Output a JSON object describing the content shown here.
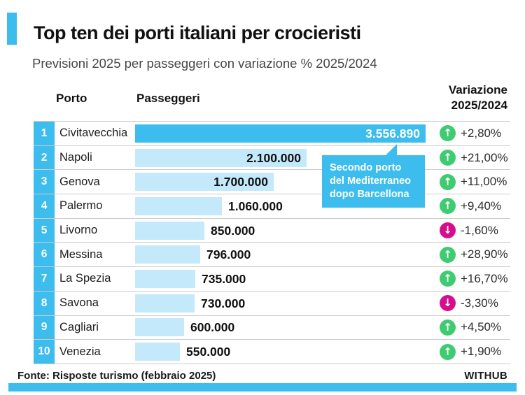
{
  "header": {
    "title": "Top ten dei porti italiani per crocieristi",
    "subtitle": "Previsioni 2025 per passeggeri con variazione % 2025/2024"
  },
  "columns": {
    "porto": "Porto",
    "passeggeri": "Passeggeri",
    "variazione": "Variazione\n2025/2024"
  },
  "rows": [
    {
      "rank": "1",
      "port": "Civitavecchia",
      "passengers": "3.556.890",
      "value": 3556890,
      "variation": "+2,80%",
      "direction": "up"
    },
    {
      "rank": "2",
      "port": "Napoli",
      "passengers": "2.100.000",
      "value": 2100000,
      "variation": "+21,00%",
      "direction": "up"
    },
    {
      "rank": "3",
      "port": "Genova",
      "passengers": "1.700.000",
      "value": 1700000,
      "variation": "+11,00%",
      "direction": "up"
    },
    {
      "rank": "4",
      "port": "Palermo",
      "passengers": "1.060.000",
      "value": 1060000,
      "variation": "+9,40%",
      "direction": "up"
    },
    {
      "rank": "5",
      "port": "Livorno",
      "passengers": "850.000",
      "value": 850000,
      "variation": "-1,60%",
      "direction": "down"
    },
    {
      "rank": "6",
      "port": "Messina",
      "passengers": "796.000",
      "value": 796000,
      "variation": "+28,90%",
      "direction": "up"
    },
    {
      "rank": "7",
      "port": "La Spezia",
      "passengers": "735.000",
      "value": 735000,
      "variation": "+16,70%",
      "direction": "up"
    },
    {
      "rank": "8",
      "port": "Savona",
      "passengers": "730.000",
      "value": 730000,
      "variation": "-3,30%",
      "direction": "down"
    },
    {
      "rank": "9",
      "port": "Cagliari",
      "passengers": "600.000",
      "value": 600000,
      "variation": "+4,50%",
      "direction": "up"
    },
    {
      "rank": "10",
      "port": "Venezia",
      "passengers": "550.000",
      "value": 550000,
      "variation": "+1,90%",
      "direction": "up"
    }
  ],
  "callout": {
    "text": "Secondo porto del Mediterraneo dopo Barcellona"
  },
  "footer": {
    "source": "Fonte: Risposte turismo (febbraio 2025)",
    "logo": "WITHUB"
  },
  "colors": {
    "accent": "#3cbdee",
    "bar_primary": "#3cbdee",
    "bar_light": "#c4e9fa",
    "up": "#3ecb71",
    "down": "#d30f8e"
  },
  "icons": {
    "up": "↑",
    "down": "↓"
  },
  "chart_data": {
    "type": "bar",
    "orientation": "horizontal",
    "title": "Top ten dei porti italiani per crocieristi",
    "subtitle": "Previsioni 2025 per passeggeri con variazione % 2025/2024",
    "categories": [
      "Civitavecchia",
      "Napoli",
      "Genova",
      "Palermo",
      "Livorno",
      "Messina",
      "La Spezia",
      "Savona",
      "Cagliari",
      "Venezia"
    ],
    "series": [
      {
        "name": "Passeggeri (previsioni 2025)",
        "values": [
          3556890,
          2100000,
          1700000,
          1060000,
          850000,
          796000,
          735000,
          730000,
          600000,
          550000
        ]
      },
      {
        "name": "Variazione % 2025/2024",
        "values": [
          2.8,
          21.0,
          11.0,
          9.4,
          -1.6,
          28.9,
          16.7,
          -3.3,
          4.5,
          1.9
        ]
      }
    ],
    "xlim": [
      0,
      3556890
    ],
    "grid": false,
    "legend": false,
    "annotations": [
      "Secondo porto del Mediterraneo dopo Barcellona"
    ],
    "source": "Fonte: Risposte turismo (febbraio 2025)"
  }
}
